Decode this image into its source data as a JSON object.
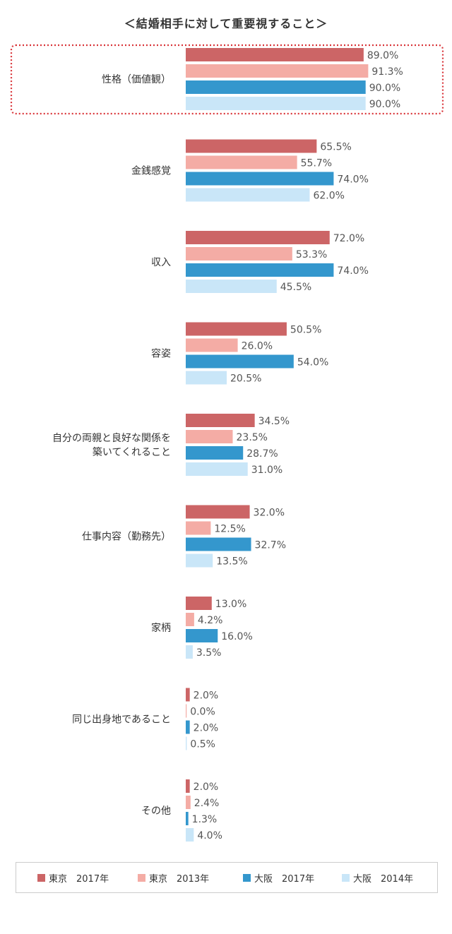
{
  "chart_data": {
    "type": "bar",
    "orientation": "horizontal",
    "title": "＜結婚相手に対して重要視すること＞",
    "value_format": "percent_one_decimal",
    "xlim": [
      0,
      100
    ],
    "categories": [
      [
        "性格（価値観）"
      ],
      [
        "金銭感覚"
      ],
      [
        "収入"
      ],
      [
        "容姿"
      ],
      [
        "自分の両親と良好な関係を",
        "築いてくれること"
      ],
      [
        "仕事内容（勤務先）"
      ],
      [
        "家柄"
      ],
      [
        "同じ出身地であること"
      ],
      [
        "その他"
      ]
    ],
    "highlighted_category_index": 0,
    "highlight_color": "#d9353a",
    "series": [
      {
        "name": "東京　2017年",
        "color": "#cc6566",
        "values": [
          89.0,
          65.5,
          72.0,
          50.5,
          34.5,
          32.0,
          13.0,
          2.0,
          2.0
        ]
      },
      {
        "name": "東京　2013年",
        "color": "#f4aca5",
        "values": [
          91.3,
          55.7,
          53.3,
          26.0,
          23.5,
          12.5,
          4.2,
          0.0,
          2.4
        ]
      },
      {
        "name": "大阪　2017年",
        "color": "#3497cd",
        "values": [
          90.0,
          74.0,
          74.0,
          54.0,
          28.7,
          32.7,
          16.0,
          2.0,
          1.3
        ]
      },
      {
        "name": "大阪　2014年",
        "color": "#c9e6f8",
        "values": [
          90.0,
          62.0,
          45.5,
          20.5,
          31.0,
          13.5,
          3.5,
          0.5,
          4.0
        ]
      }
    ],
    "legend_position": "bottom",
    "grid": false
  }
}
